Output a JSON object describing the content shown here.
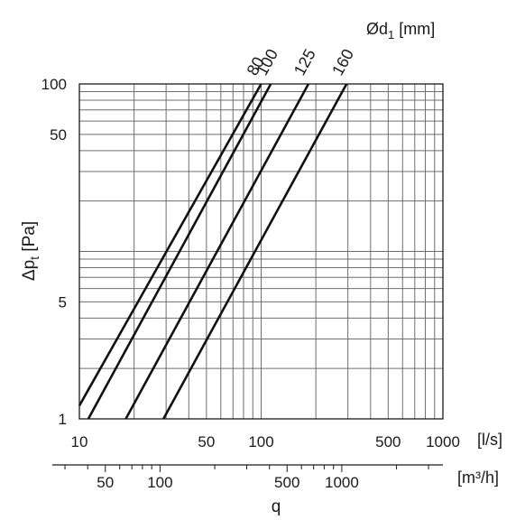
{
  "chart_data": {
    "type": "line",
    "title": "",
    "xlabel": "q",
    "ylabel": "Δp",
    "ylabel_sub": "t",
    "ylabel_unit": "[Pa]",
    "x_unit_primary": "[l/s]",
    "x_unit_secondary": "[m³/h]",
    "x_scale": "log",
    "y_scale": "log",
    "xlim": [
      10,
      1000
    ],
    "ylim": [
      1,
      100
    ],
    "grid": true,
    "legend": "none",
    "series_header": {
      "prefix": "Ød",
      "sub": "1",
      "unit": "[mm]"
    },
    "x_ticks": [
      10,
      50,
      100,
      500,
      1000
    ],
    "y_ticks": [
      1,
      5,
      50,
      100
    ],
    "x2_ticks": [
      50,
      100,
      500,
      1000
    ],
    "series": [
      {
        "name": "80",
        "x": [
          10,
          100
        ],
        "y": [
          1.2,
          100
        ]
      },
      {
        "name": "100",
        "x": [
          11.2,
          113
        ],
        "y": [
          1,
          100
        ]
      },
      {
        "name": "125",
        "x": [
          18,
          182
        ],
        "y": [
          1,
          100
        ]
      },
      {
        "name": "160",
        "x": [
          29,
          295
        ],
        "y": [
          1,
          100
        ]
      }
    ]
  }
}
